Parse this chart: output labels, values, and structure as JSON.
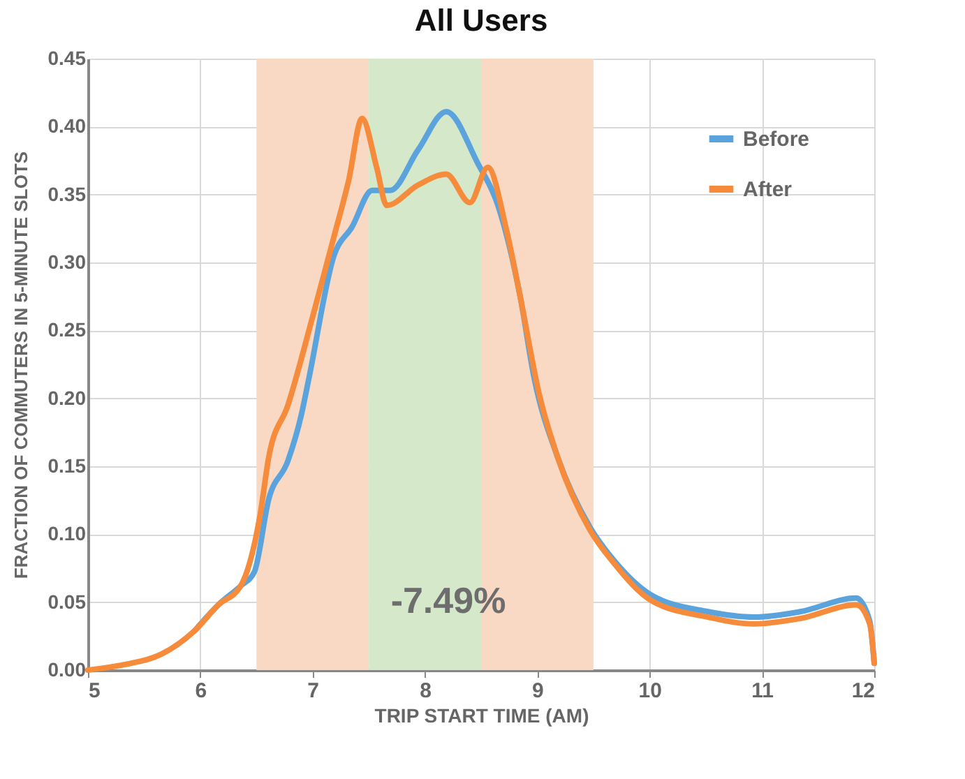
{
  "chart_data": {
    "type": "line",
    "title": "All Users",
    "xlabel": "TRIP START TIME (AM)",
    "ylabel": "FRACTION OF COMMUTERS IN 5-MINUTE SLOTS",
    "series": [
      {
        "name": "Before",
        "color": "#5ba3dc",
        "x": [
          5.95,
          6.16,
          6.36,
          6.48,
          6.61,
          6.78,
          6.9,
          6.97,
          7.19,
          7.35,
          7.53,
          7.69,
          7.94,
          8.19,
          8.47,
          8.65,
          8.85,
          8.97,
          9.18,
          9.47,
          9.68,
          10.02,
          10.52,
          10.93,
          11.34,
          11.84,
          11.96,
          12.0
        ],
        "values": [
          0.029,
          0.048,
          0.062,
          0.072,
          0.126,
          0.154,
          0.188,
          0.216,
          0.305,
          0.326,
          0.353,
          0.353,
          0.383,
          0.411,
          0.373,
          0.342,
          0.274,
          0.216,
          0.157,
          0.105,
          0.081,
          0.055,
          0.043,
          0.039,
          0.043,
          0.053,
          0.036,
          0.005
        ]
      },
      {
        "name": "After",
        "color": "#f58b3b",
        "x": [
          5.0,
          5.32,
          5.66,
          5.95,
          6.16,
          6.36,
          6.44,
          6.53,
          6.61,
          6.78,
          7.0,
          7.19,
          7.32,
          7.44,
          7.57,
          7.66,
          7.94,
          8.19,
          8.4,
          8.56,
          8.72,
          8.85,
          9.02,
          9.18,
          9.47,
          9.68,
          10.02,
          10.52,
          10.93,
          11.34,
          11.84,
          11.96,
          12.0
        ],
        "values": [
          0.0,
          0.004,
          0.012,
          0.029,
          0.048,
          0.062,
          0.079,
          0.113,
          0.157,
          0.195,
          0.26,
          0.319,
          0.36,
          0.406,
          0.37,
          0.342,
          0.357,
          0.365,
          0.344,
          0.37,
          0.326,
          0.274,
          0.202,
          0.157,
          0.103,
          0.079,
          0.051,
          0.039,
          0.034,
          0.038,
          0.048,
          0.034,
          0.005
        ]
      }
    ],
    "xlim": [
      5,
      12
    ],
    "xticks": [
      5,
      6,
      7,
      8,
      9,
      10,
      11,
      12
    ],
    "ylim": [
      0,
      0.45
    ],
    "yticks": [
      {
        "value": 0,
        "label": "0.00"
      },
      {
        "value": 0.05,
        "label": "0.05"
      },
      {
        "value": 0.1,
        "label": "0.10"
      },
      {
        "value": 0.15,
        "label": "0.15"
      },
      {
        "value": 0.2,
        "label": "0.20"
      },
      {
        "value": 0.25,
        "label": "0.25"
      },
      {
        "value": 0.3,
        "label": "0.30"
      },
      {
        "value": 0.35,
        "label": "0.35"
      },
      {
        "value": 0.4,
        "label": "0.40"
      },
      {
        "value": 0.45,
        "label": "0.45"
      }
    ],
    "bands": [
      {
        "axis": "x",
        "from": 6.5,
        "to": 7.5,
        "color": "#f9d9c3"
      },
      {
        "axis": "x",
        "from": 7.5,
        "to": 8.5,
        "color": "#d5e8c9"
      },
      {
        "axis": "x",
        "from": 8.5,
        "to": 9.5,
        "color": "#f9d9c3"
      }
    ],
    "annotations": [
      "-7.49%"
    ],
    "grid": true,
    "legend": "top right"
  }
}
